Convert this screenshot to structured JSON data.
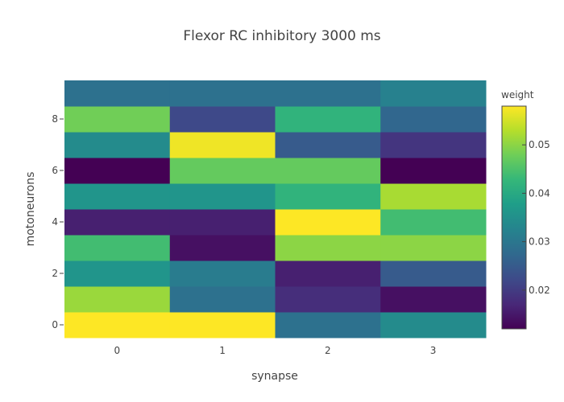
{
  "chart_data": {
    "type": "heatmap",
    "title": "Flexor RC inhibitory 3000 ms",
    "xlabel": "synapse",
    "ylabel": "motoneurons",
    "x": [
      0,
      1,
      2,
      3
    ],
    "y": [
      0,
      1,
      2,
      3,
      4,
      5,
      6,
      7,
      8,
      9
    ],
    "x_ticks": [
      "0",
      "1",
      "2",
      "3"
    ],
    "y_ticks": [
      "0",
      "2",
      "4",
      "6",
      "8"
    ],
    "z": [
      [
        0.058,
        0.058,
        0.029,
        0.034
      ],
      [
        0.051,
        0.029,
        0.018,
        0.014
      ],
      [
        0.036,
        0.031,
        0.016,
        0.025
      ],
      [
        0.044,
        0.014,
        0.05,
        0.05
      ],
      [
        0.016,
        0.016,
        0.058,
        0.044
      ],
      [
        0.036,
        0.036,
        0.042,
        0.052
      ],
      [
        0.012,
        0.047,
        0.047,
        0.012
      ],
      [
        0.034,
        0.057,
        0.025,
        0.019
      ],
      [
        0.048,
        0.022,
        0.042,
        0.027
      ],
      [
        0.029,
        0.029,
        0.029,
        0.032
      ]
    ],
    "zlim": [
      0.012,
      0.058
    ],
    "colorscale": "Viridis",
    "colorbar": {
      "title": "weight",
      "ticks": [
        0.02,
        0.03,
        0.04,
        0.05
      ],
      "tick_labels": [
        "0.02",
        "0.03",
        "0.04",
        "0.05"
      ]
    }
  }
}
